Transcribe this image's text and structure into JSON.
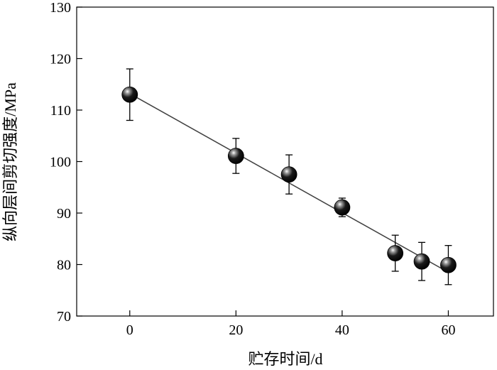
{
  "chart_data": {
    "type": "scatter",
    "xlabel": "贮存时间/d",
    "ylabel": "纵向层间剪切强度/MPa",
    "xlim": [
      -10,
      68.5
    ],
    "ylim": [
      70,
      130
    ],
    "xticks": [
      0,
      20,
      40,
      60
    ],
    "yticks": [
      70,
      80,
      90,
      100,
      110,
      120,
      130
    ],
    "grid": false,
    "legend": "none",
    "series": [
      {
        "points": [
          {
            "x": 0,
            "y": 113.0,
            "err": 5.0
          },
          {
            "x": 20,
            "y": 101.1,
            "err": 3.4
          },
          {
            "x": 30,
            "y": 97.5,
            "err": 3.8
          },
          {
            "x": 40,
            "y": 91.1,
            "err": 1.8
          },
          {
            "x": 50,
            "y": 82.2,
            "err": 3.5
          },
          {
            "x": 55,
            "y": 80.6,
            "err": 3.7
          },
          {
            "x": 60,
            "y": 79.9,
            "err": 3.8
          }
        ]
      }
    ],
    "fit_line": {
      "x": [
        0,
        60
      ],
      "y": [
        113.2,
        78.5
      ]
    },
    "colors": {
      "axis": "#000000",
      "line": "#404040",
      "marker": "#000000"
    }
  }
}
